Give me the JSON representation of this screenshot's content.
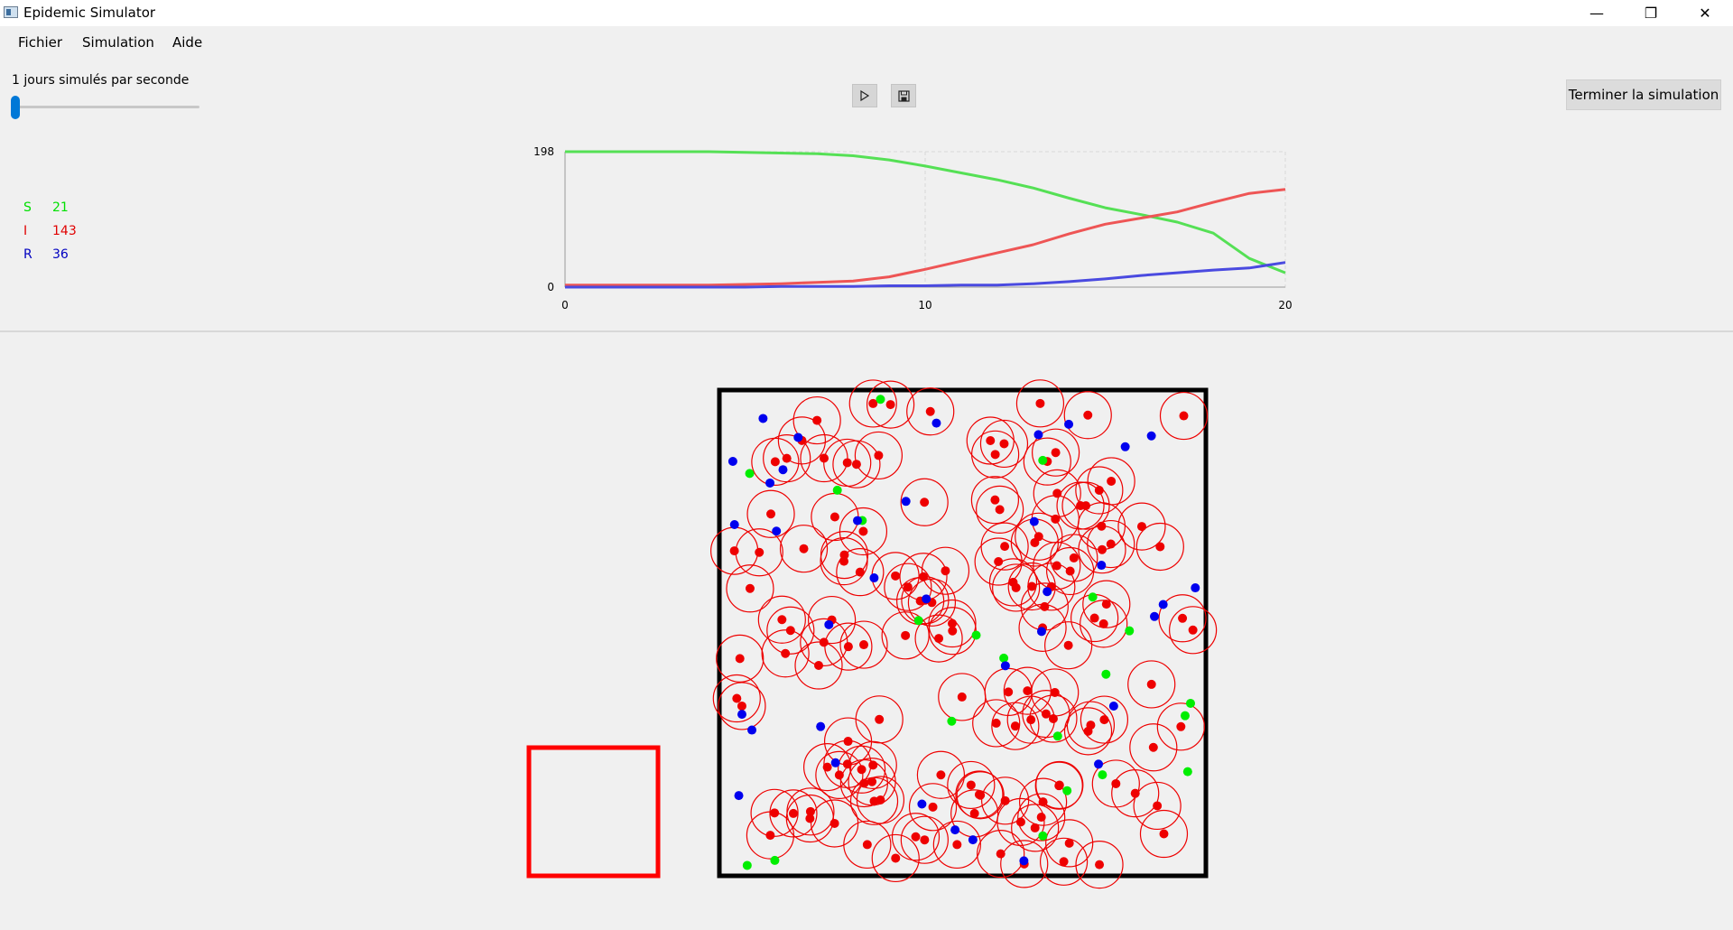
{
  "window": {
    "title": "Epidemic Simulator",
    "controls": {
      "minimize": "—",
      "maximize": "❐",
      "close": "✕"
    }
  },
  "menu": {
    "items": [
      "Fichier",
      "Simulation",
      "Aide"
    ]
  },
  "controls": {
    "speed_label": "1 jours simulés par seconde",
    "speed_value": 1,
    "play_icon": "play-icon",
    "save_icon": "save-icon",
    "end_button": "Terminer la simulation"
  },
  "counts": {
    "S": {
      "label": "S",
      "value": "21",
      "color": "#00e000"
    },
    "I": {
      "label": "I",
      "value": "143",
      "color": "#e00000"
    },
    "R": {
      "label": "R",
      "value": "36",
      "color": "#0000c0"
    }
  },
  "chart_data": {
    "type": "line",
    "title": "",
    "xlabel": "",
    "ylabel": "",
    "xlim": [
      0,
      20
    ],
    "ylim": [
      0,
      198
    ],
    "xticks": [
      "0",
      "10",
      "20"
    ],
    "yticks": [
      "0",
      "198"
    ],
    "grid": true,
    "series": [
      {
        "color": "#55e055",
        "x": [
          0,
          2,
          4,
          5,
          6,
          7,
          8,
          9,
          10,
          11,
          12,
          13,
          14,
          15,
          16,
          17,
          18,
          19,
          20
        ],
        "y": [
          198,
          198,
          198,
          197,
          196,
          195,
          192,
          186,
          177,
          167,
          157,
          145,
          130,
          116,
          106,
          95,
          79,
          42,
          21
        ]
      },
      {
        "color": "#ee5555",
        "x": [
          0,
          2,
          4,
          5,
          6,
          7,
          8,
          9,
          10,
          11,
          12,
          13,
          14,
          15,
          16,
          17,
          18,
          19,
          20
        ],
        "y": [
          3,
          3,
          3,
          4,
          5,
          7,
          9,
          15,
          26,
          38,
          50,
          62,
          78,
          92,
          101,
          110,
          124,
          137,
          143
        ]
      },
      {
        "color": "#4a4ae0",
        "x": [
          0,
          2,
          4,
          5,
          6,
          7,
          8,
          9,
          10,
          11,
          12,
          13,
          14,
          15,
          16,
          17,
          18,
          19,
          20
        ],
        "y": [
          0,
          0,
          0,
          0,
          1,
          1,
          1,
          2,
          2,
          3,
          3,
          5,
          8,
          12,
          17,
          21,
          25,
          28,
          36
        ]
      }
    ]
  },
  "simulation": {
    "status_colors": {
      "S": "#00ee00",
      "I": "#ee0000",
      "R": "#0000ee",
      "zone": "#ff0000",
      "world": "#000000"
    }
  }
}
